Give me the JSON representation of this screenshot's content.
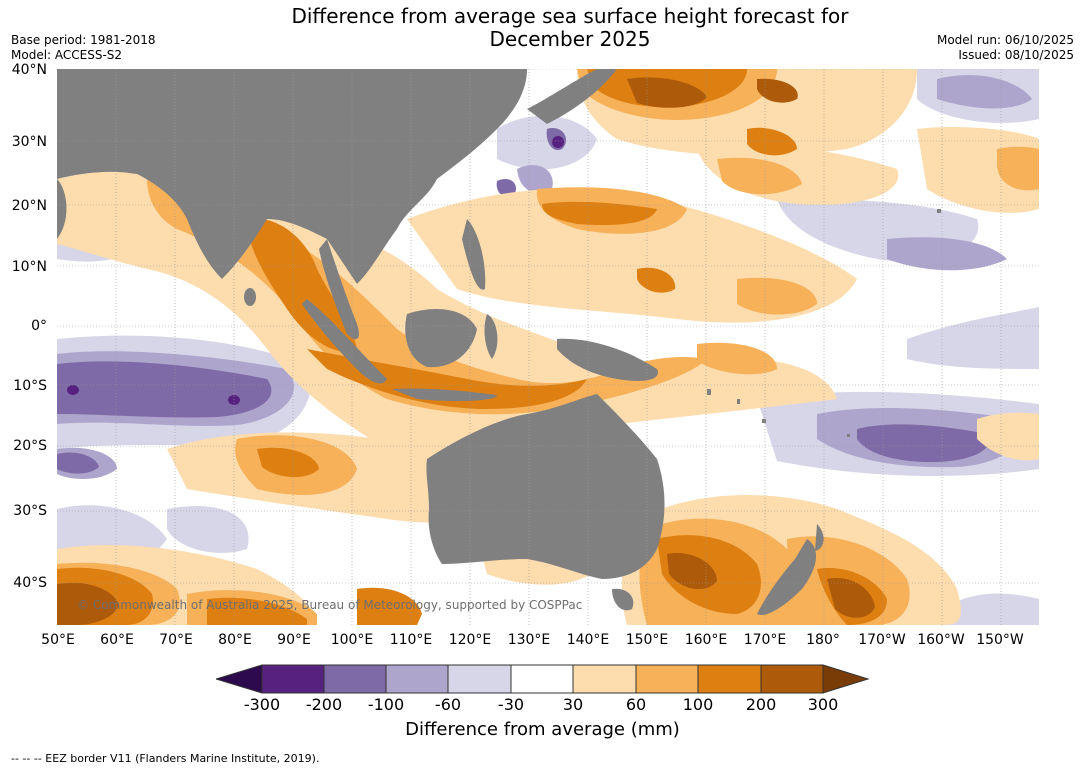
{
  "title_line1": "Difference from average sea surface height forecast for",
  "title_line2": "December 2025",
  "base_period": "Base period: 1981-2018",
  "model": "Model: ACCESS-S2",
  "model_run": "Model run: 06/10/2025",
  "issued": "Issued: 08/10/2025",
  "copyright": "© Commonwealth of Australia 2025, Bureau of Meteorology, supported by COSPPac",
  "footer": "--  --  -- EEZ border V11 (Flanders Marine Institute, 2019).",
  "lat_labels": [
    "40°N",
    "30°N",
    "20°N",
    "10°N",
    "0°",
    "10°S",
    "20°S",
    "30°S",
    "40°S"
  ],
  "lon_labels": [
    "50°E",
    "60°E",
    "70°E",
    "80°E",
    "90°E",
    "100°E",
    "110°E",
    "120°E",
    "130°E",
    "140°E",
    "150°E",
    "160°E",
    "170°E",
    "180°",
    "170°W",
    "160°W",
    "150°W"
  ],
  "colorbar": {
    "label": "Difference from average (mm)",
    "ticks": [
      "-300",
      "-200",
      "-100",
      "-60",
      "-30",
      "30",
      "60",
      "100",
      "200",
      "300"
    ],
    "colors": [
      "#2d0a4e",
      "#57227f",
      "#7f6aa8",
      "#aea5cd",
      "#d6d6e8",
      "#ffffff",
      "#fddcae",
      "#f7b159",
      "#de7f12",
      "#ae5a0b",
      "#7a3c07"
    ]
  },
  "colors": {
    "land": "#808080",
    "grid": "#999999"
  }
}
